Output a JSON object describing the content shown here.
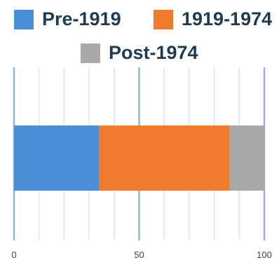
{
  "chart_data": {
    "type": "bar",
    "orientation": "horizontal",
    "stacked": true,
    "title": "",
    "xlabel": "",
    "ylabel": "",
    "categories": [
      ""
    ],
    "series": [
      {
        "name": "Pre-1919",
        "values": [
          34
        ],
        "color": "#4a8fd6"
      },
      {
        "name": "1919-1974",
        "values": [
          52
        ],
        "color": "#f07a2e"
      },
      {
        "name": "Post-1974",
        "values": [
          14
        ],
        "color": "#a9a9a9"
      }
    ],
    "xlim": [
      0,
      100
    ],
    "xticks": [
      0,
      50,
      100
    ],
    "xtick_labels": [
      "0",
      "50",
      "100"
    ],
    "grid": {
      "vertical": true,
      "minor_step": 10,
      "major_step": 50,
      "minor_color": "#d9e4f2",
      "major_color": "#8fb3e0"
    },
    "legend": {
      "position": "top"
    }
  }
}
